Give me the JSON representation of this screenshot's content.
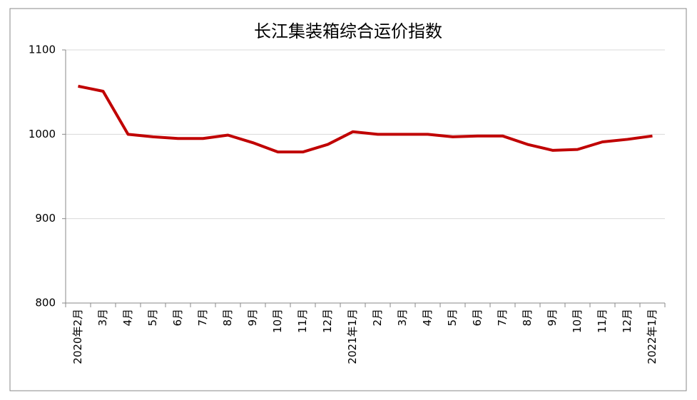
{
  "chart_data": {
    "type": "line",
    "title": "长江集装箱综合运价指数",
    "categories": [
      "2020年2月",
      "3月",
      "4月",
      "5月",
      "6月",
      "7月",
      "8月",
      "9月",
      "10月",
      "11月",
      "12月",
      "2021年1月",
      "2月",
      "3月",
      "4月",
      "5月",
      "6月",
      "7月",
      "8月",
      "9月",
      "10月",
      "11月",
      "12月",
      "2022年1月"
    ],
    "series": [
      {
        "name": "长江集装箱综合运价指数",
        "color": "#c00000",
        "values": [
          1057,
          1051,
          1000,
          997,
          995,
          995,
          999,
          990,
          979,
          979,
          988,
          1003,
          1000,
          1000,
          1000,
          997,
          998,
          998,
          988,
          981,
          982,
          991,
          994,
          998
        ]
      }
    ],
    "ylim": [
      800,
      1100
    ],
    "yticks": [
      800,
      900,
      1000,
      1100
    ],
    "grid": true
  }
}
